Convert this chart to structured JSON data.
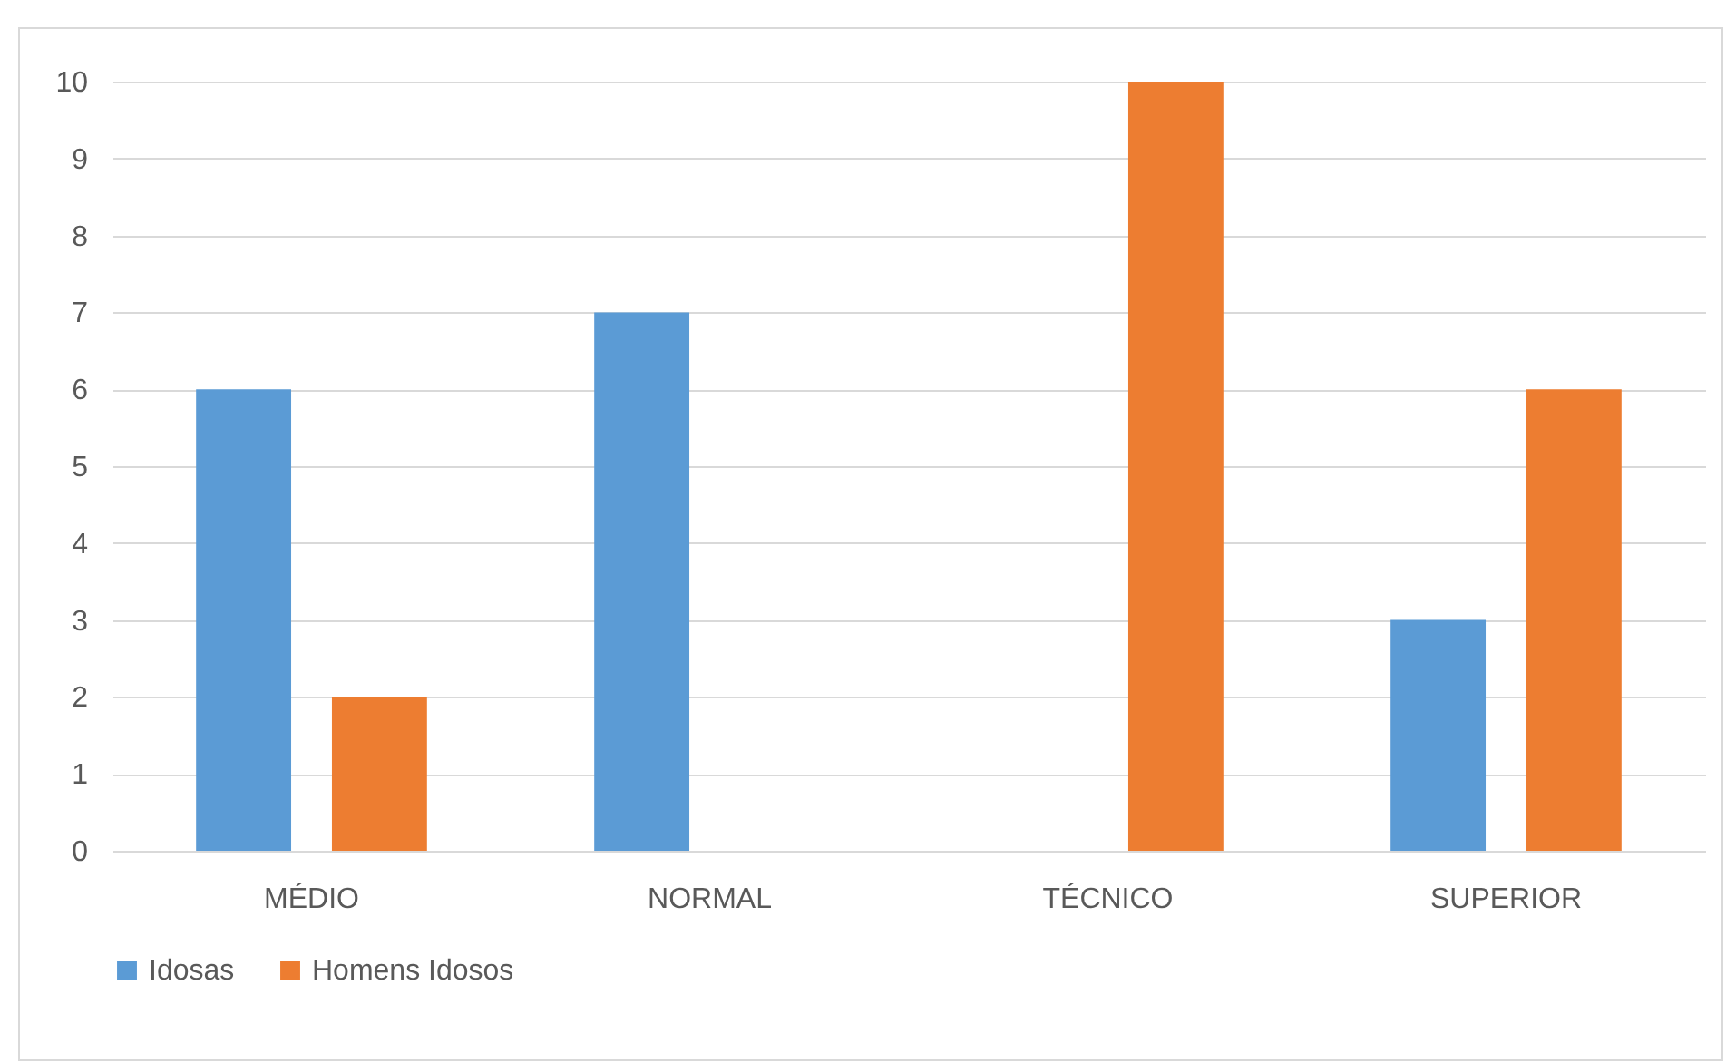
{
  "chart_data": {
    "type": "bar",
    "categories": [
      "MÉDIO",
      "NORMAL",
      "TÉCNICO",
      "SUPERIOR"
    ],
    "series": [
      {
        "name": "Idosas",
        "color": "#5b9bd5",
        "values": [
          6,
          7,
          null,
          3
        ]
      },
      {
        "name": "Homens Idosos",
        "color": "#ed7d31",
        "values": [
          2,
          null,
          10,
          6
        ]
      }
    ],
    "ylim": [
      0,
      10
    ],
    "yticks": [
      0,
      1,
      2,
      3,
      4,
      5,
      6,
      7,
      8,
      9,
      10
    ],
    "grid": "y",
    "legend": "bottom"
  }
}
